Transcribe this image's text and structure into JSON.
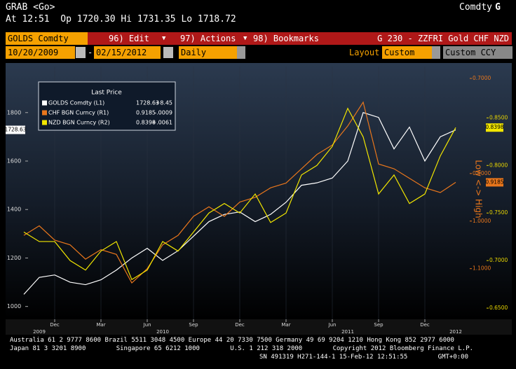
{
  "header": {
    "command": "GRAB <Go>",
    "market": "Comdty",
    "market_key": "G",
    "quote": "At 12:51  Op 1720.30 Hi 1731.35 Lo 1718.72"
  },
  "toolbar": {
    "security": "GOLDS Comdty",
    "menus": [
      "96) Edit",
      "97) Actions",
      "98) Bookmarks"
    ],
    "page_title": "G 230 - ZZFRI Gold CHF NZD",
    "start_date": "10/20/2009",
    "end_date": "02/15/2012",
    "period": "Daily",
    "layout_label": "Layout",
    "layout": "Custom",
    "button": "Custom CCY"
  },
  "chart_data": {
    "type": "line",
    "legend_title": "Last Price",
    "axis_annotation": "Low <-> High",
    "x": [
      "2009-10",
      "2009-11",
      "2009-12",
      "2010-01",
      "2010-02",
      "2010-03",
      "2010-04",
      "2010-05",
      "2010-06",
      "2010-07",
      "2010-08",
      "2010-09",
      "2010-10",
      "2010-11",
      "2010-12",
      "2011-01",
      "2011-02",
      "2011-03",
      "2011-04",
      "2011-05",
      "2011-06",
      "2011-07",
      "2011-08",
      "2011-09",
      "2011-10",
      "2011-11",
      "2011-12",
      "2012-01",
      "2012-02"
    ],
    "series": [
      {
        "name": "GOLDS Comdty (L1)",
        "color": "#ffffff",
        "axis": "y",
        "last": "1728.63",
        "change": "+8.45",
        "values": [
          1050,
          1120,
          1130,
          1100,
          1090,
          1110,
          1150,
          1200,
          1240,
          1190,
          1230,
          1290,
          1350,
          1380,
          1390,
          1350,
          1380,
          1430,
          1500,
          1510,
          1530,
          1600,
          1800,
          1780,
          1650,
          1740,
          1600,
          1700,
          1728.63
        ]
      },
      {
        "name": "CHF BGN Curncy (R1)",
        "color": "#e8761c",
        "axis": "y2",
        "last": "0.9185",
        "change": "-.0009",
        "values": [
          1.03,
          1.01,
          1.04,
          1.05,
          1.08,
          1.06,
          1.07,
          1.13,
          1.1,
          1.05,
          1.03,
          0.99,
          0.97,
          0.99,
          0.96,
          0.95,
          0.93,
          0.92,
          0.89,
          0.86,
          0.84,
          0.8,
          0.75,
          0.88,
          0.89,
          0.91,
          0.93,
          0.94,
          0.9185
        ]
      },
      {
        "name": "NZD BGN Curncy (R2)",
        "color": "#f2e600",
        "axis": "y3",
        "last": "0.8398",
        "change": "+.0061",
        "values": [
          0.73,
          0.72,
          0.72,
          0.7,
          0.69,
          0.71,
          0.72,
          0.68,
          0.69,
          0.72,
          0.71,
          0.73,
          0.75,
          0.76,
          0.75,
          0.77,
          0.74,
          0.75,
          0.79,
          0.8,
          0.82,
          0.86,
          0.83,
          0.77,
          0.79,
          0.76,
          0.77,
          0.81,
          0.8398
        ]
      }
    ],
    "ylim": [
      950,
      1990
    ],
    "yticks": [
      1000,
      1200,
      1400,
      1600,
      1800
    ],
    "y2lim": [
      1.205,
      0.675
    ],
    "y2_inverted": true,
    "y2ticks": [
      {
        "value": 0.7,
        "label": "0.7000"
      },
      {
        "value": 0.9,
        "label": "0.9000"
      },
      {
        "value": 1.0,
        "label": "1.0000"
      },
      {
        "value": 1.1,
        "label": "1.1000"
      }
    ],
    "y3lim": [
      0.639,
      0.904
    ],
    "y3ticks": [
      {
        "value": 0.85,
        "label": "0.8500"
      },
      {
        "value": 0.8,
        "label": "0.8000"
      },
      {
        "value": 0.75,
        "label": "0.7500"
      },
      {
        "value": 0.7,
        "label": "0.7000"
      },
      {
        "value": 0.65,
        "label": "0.6500"
      }
    ],
    "xticks": [
      {
        "value": "2009-12",
        "label": "Dec"
      },
      {
        "value": "2010-03",
        "label": "Mar"
      },
      {
        "value": "2010-06",
        "label": "Jun"
      },
      {
        "value": "2010-09",
        "label": "Sep"
      },
      {
        "value": "2010-12",
        "label": "Dec"
      },
      {
        "value": "2011-03",
        "label": "Mar"
      },
      {
        "value": "2011-06",
        "label": "Jun"
      },
      {
        "value": "2011-09",
        "label": "Sep"
      },
      {
        "value": "2011-12",
        "label": "Dec"
      }
    ],
    "year_labels": [
      {
        "value": "2009-11",
        "label": "2009"
      },
      {
        "value": "2010-07",
        "label": "2010"
      },
      {
        "value": "2011-07",
        "label": "2011"
      },
      {
        "value": "2012-02",
        "label": "2012"
      }
    ]
  },
  "footer": {
    "lines": [
      "Australia 61 2 9777 8600 Brazil 5511 3048 4500 Europe 44 20 7330 7500 Germany 49 69 9204 1210 Hong Kong 852 2977 6000",
      "Japan 81 3 3201 8900        Singapore 65 6212 1000        U.S. 1 212 318 2000        Copyright 2012 Bloomberg Finance L.P.",
      "SN 491319 H271-144-1 15-Feb-12 12:51:55        GMT+0:00"
    ]
  }
}
